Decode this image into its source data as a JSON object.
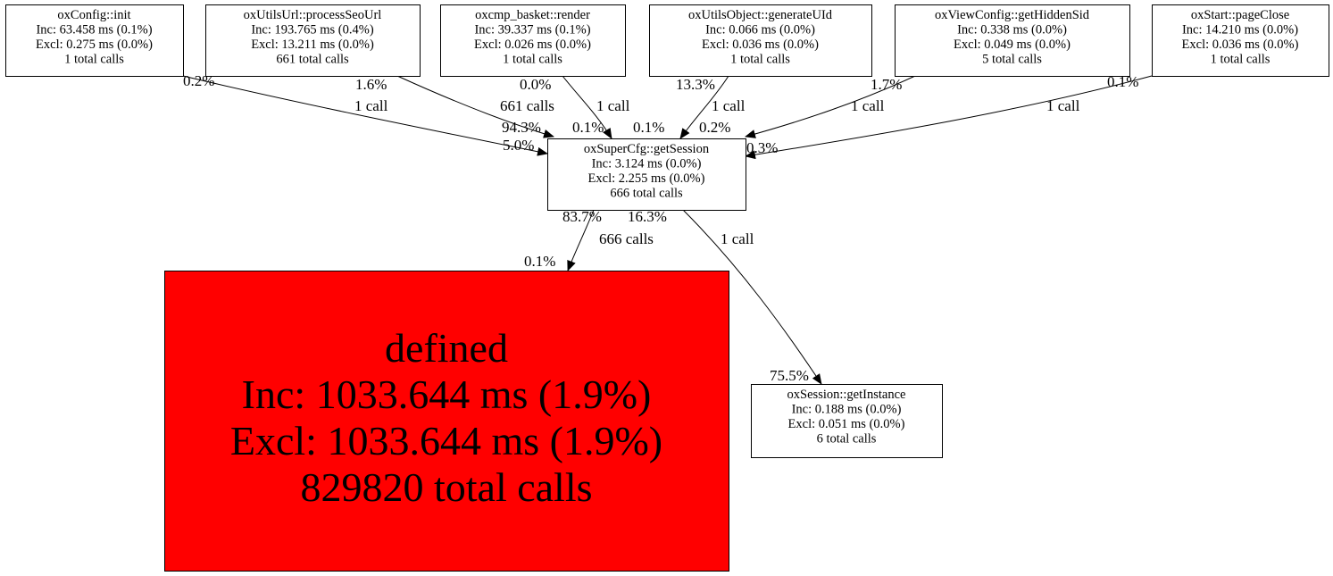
{
  "nodes": [
    {
      "id": "init",
      "name": "oxConfig::init",
      "inc": "Inc: 63.458 ms (0.1%)",
      "excl": "Excl: 0.275 ms (0.0%)",
      "calls": "1 total calls",
      "fill": "#ffffff"
    },
    {
      "id": "seo",
      "name": "oxUtilsUrl::processSeoUrl",
      "inc": "Inc: 193.765 ms (0.4%)",
      "excl": "Excl: 13.211 ms (0.0%)",
      "calls": "661 total calls",
      "fill": "#ffffff"
    },
    {
      "id": "basket",
      "name": "oxcmp_basket::render",
      "inc": "Inc: 39.337 ms (0.1%)",
      "excl": "Excl: 0.026 ms (0.0%)",
      "calls": "1 total calls",
      "fill": "#ffffff"
    },
    {
      "id": "uid",
      "name": "oxUtilsObject::generateUId",
      "inc": "Inc: 0.066 ms (0.0%)",
      "excl": "Excl: 0.036 ms (0.0%)",
      "calls": "1 total calls",
      "fill": "#ffffff"
    },
    {
      "id": "sid",
      "name": "oxViewConfig::getHiddenSid",
      "inc": "Inc: 0.338 ms (0.0%)",
      "excl": "Excl: 0.049 ms (0.0%)",
      "calls": "5 total calls",
      "fill": "#ffffff"
    },
    {
      "id": "close",
      "name": "oxStart::pageClose",
      "inc": "Inc: 14.210 ms (0.0%)",
      "excl": "Excl: 0.036 ms (0.0%)",
      "calls": "1 total calls",
      "fill": "#ffffff"
    },
    {
      "id": "session",
      "name": "oxSuperCfg::getSession",
      "inc": "Inc: 3.124 ms (0.0%)",
      "excl": "Excl: 2.255 ms (0.0%)",
      "calls": "666 total calls",
      "fill": "#ffffff"
    },
    {
      "id": "defined",
      "name": "defined",
      "inc": "Inc: 1033.644 ms (1.9%)",
      "excl": "Excl: 1033.644 ms (1.9%)",
      "calls": "829820 total calls",
      "fill": "#ff0000"
    },
    {
      "id": "instance",
      "name": "oxSession::getInstance",
      "inc": "Inc: 0.188 ms (0.0%)",
      "excl": "Excl: 0.051 ms (0.0%)",
      "calls": "6 total calls",
      "fill": "#ffffff"
    }
  ],
  "edges": [
    {
      "from": "init",
      "to": "session",
      "tail": "0.2%",
      "label": "1 call",
      "head": "5.0%"
    },
    {
      "from": "seo",
      "to": "session",
      "tail": "1.6%",
      "label": "661 calls",
      "head": "94.3%"
    },
    {
      "from": "basket",
      "to": "session",
      "tail": "0.0%",
      "label": "1 call",
      "head": "0.1%"
    },
    {
      "from": "uid",
      "to": "session",
      "tail": "13.3%",
      "label": "1 call",
      "head": "0.1%"
    },
    {
      "from": "sid",
      "to": "session",
      "tail": "1.7%",
      "label": "1 call",
      "head": "0.2%"
    },
    {
      "from": "close",
      "to": "session",
      "tail": "0.1%",
      "label": "1 call",
      "head": "0.3%"
    },
    {
      "from": "session",
      "to": "defined",
      "tail": "83.7%",
      "label": "666 calls",
      "head": "0.1%"
    },
    {
      "from": "session",
      "to": "instance",
      "tail": "16.3%",
      "label": "1 call",
      "head": "75.5%"
    }
  ]
}
